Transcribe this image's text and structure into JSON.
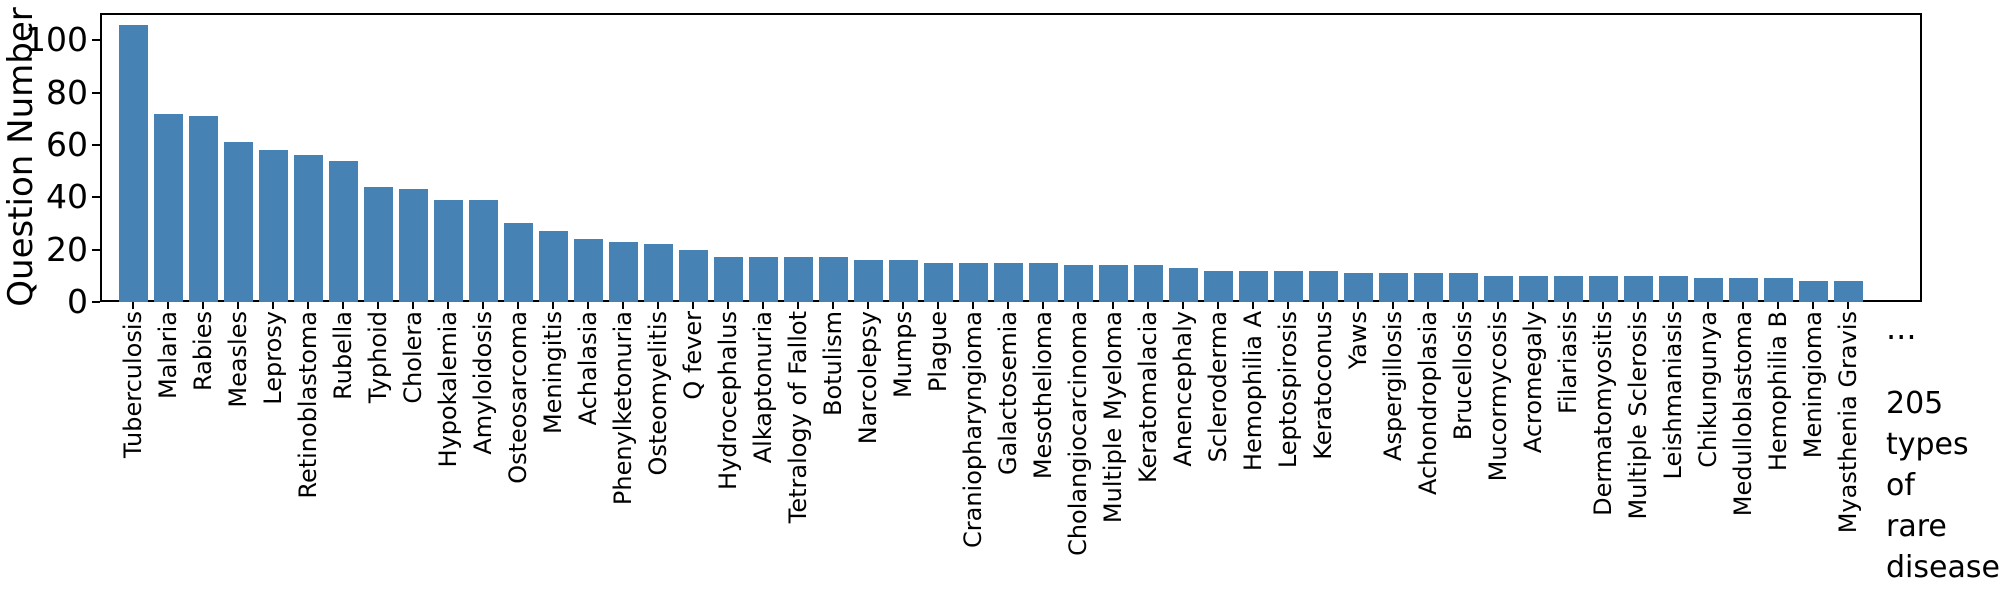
{
  "figure": {
    "background": "#ffffff"
  },
  "chart_data": {
    "type": "bar",
    "title": "",
    "xlabel": "",
    "ylabel": "Question Number",
    "grid": false,
    "legend": "none",
    "bar_color": "#4682b4",
    "axis_color": "#000000",
    "yticks": [
      0,
      20,
      40,
      60,
      80,
      100
    ],
    "ylim": [
      0,
      110.4
    ],
    "categories": [
      "Tuberculosis",
      "Malaria",
      "Rabies",
      "Measles",
      "Leprosy",
      "Retinoblastoma",
      "Rubella",
      "Typhoid",
      "Cholera",
      "Hypokalemia",
      "Amyloidosis",
      "Osteosarcoma",
      "Meningitis",
      "Achalasia",
      "Phenylketonuria",
      "Osteomyelitis",
      "Q fever",
      "Hydrocephalus",
      "Alkaptonuria",
      "Tetralogy of Fallot",
      "Botulism",
      "Narcolepsy",
      "Mumps",
      "Plague",
      "Craniopharyngioma",
      "Galactosemia",
      "Mesothelioma",
      "Cholangiocarcinoma",
      "Multiple Myeloma",
      "Keratomalacia",
      "Anencephaly",
      "Scleroderma",
      "Hemophilia A",
      "Leptospirosis",
      "Keratoconus",
      "Yaws",
      "Aspergillosis",
      "Achondroplasia",
      "Brucellosis",
      "Mucormycosis",
      "Acromegaly",
      "Filariasis",
      "Dermatomyositis",
      "Multiple Sclerosis",
      "Leishmaniasis",
      "Chikungunya",
      "Medulloblastoma",
      "Hemophilia B",
      "Meningioma",
      "Myasthenia Gravis"
    ],
    "values": [
      106,
      72,
      71,
      61,
      58,
      56,
      54,
      44,
      43,
      39,
      39,
      30,
      27,
      24,
      23,
      22,
      20,
      17,
      17,
      17,
      17,
      16,
      16,
      15,
      15,
      15,
      15,
      14,
      14,
      14,
      13,
      12,
      12,
      12,
      12,
      11,
      11,
      11,
      11,
      10,
      10,
      10,
      10,
      10,
      10,
      9,
      9,
      9,
      8,
      8
    ],
    "annotations": {
      "ellipsis": "...",
      "note": "205 types of rare disease",
      "note_lines": [
        "205",
        "types of",
        "rare",
        "disease"
      ]
    }
  }
}
